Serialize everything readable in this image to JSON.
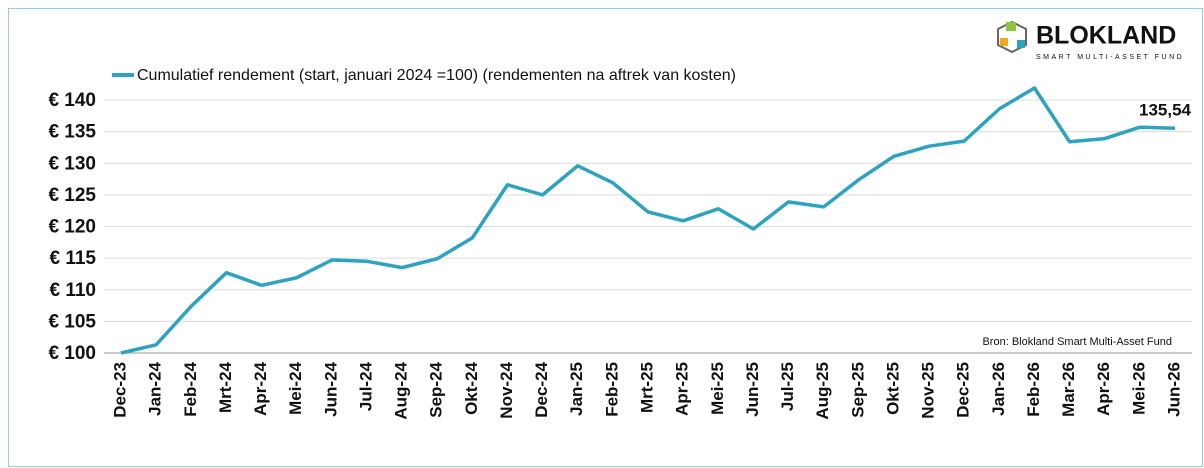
{
  "chart_data": {
    "type": "line",
    "brand": {
      "name": "BLOKLAND",
      "tagline": "SMART MULTI-ASSET FUND"
    },
    "source": "Bron: Blokland Smart Multi-Asset Fund",
    "categories": [
      "Dec-23",
      "Jan-24",
      "Feb-24",
      "Mrt-24",
      "Apr-24",
      "Mei-24",
      "Jun-24",
      "Jul-24",
      "Aug-24",
      "Sep-24",
      "Okt-24",
      "Nov-24",
      "Dec-24",
      "Jan-25",
      "Feb-25",
      "Mrt-25",
      "Apr-25",
      "Mei-25",
      "Jun-25",
      "Jul-25",
      "Aug-25",
      "Sep-25",
      "Okt-25",
      "Nov-25",
      "Dec-25",
      "Jan-26",
      "Feb-26",
      "Mar-26",
      "Apr-26",
      "Mei-26",
      "Jun-26"
    ],
    "series": [
      {
        "name": "Cumulatief rendement (start, januari 2024 =100) (rendementen na aftrek van kosten)",
        "color": "#2ea3c0",
        "values": [
          100,
          101.3,
          107.4,
          112.7,
          110.7,
          111.9,
          114.7,
          114.5,
          113.5,
          114.9,
          118.2,
          126.6,
          125.0,
          129.6,
          126.9,
          122.3,
          120.9,
          122.8,
          119.6,
          123.9,
          123.1,
          127.4,
          131.1,
          132.7,
          133.5,
          138.6,
          141.9,
          133.4,
          133.9,
          135.7,
          135.54
        ],
        "value_labels": [
          null,
          null,
          null,
          null,
          null,
          null,
          null,
          null,
          null,
          null,
          null,
          null,
          null,
          null,
          null,
          null,
          null,
          null,
          null,
          null,
          null,
          null,
          null,
          null,
          null,
          null,
          null,
          null,
          null,
          null,
          "135,54"
        ]
      }
    ],
    "ylim": [
      100,
      145
    ],
    "yticks": [
      {
        "value": 100,
        "label": "€ 100"
      },
      {
        "value": 105,
        "label": "€ 105"
      },
      {
        "value": 110,
        "label": "€ 110"
      },
      {
        "value": 115,
        "label": "€ 115"
      },
      {
        "value": 120,
        "label": "€ 120"
      },
      {
        "value": 125,
        "label": "€ 125"
      },
      {
        "value": 130,
        "label": "€ 130"
      },
      {
        "value": 135,
        "label": "€ 135"
      },
      {
        "value": 140,
        "label": "€ 140"
      }
    ],
    "grid": true
  }
}
